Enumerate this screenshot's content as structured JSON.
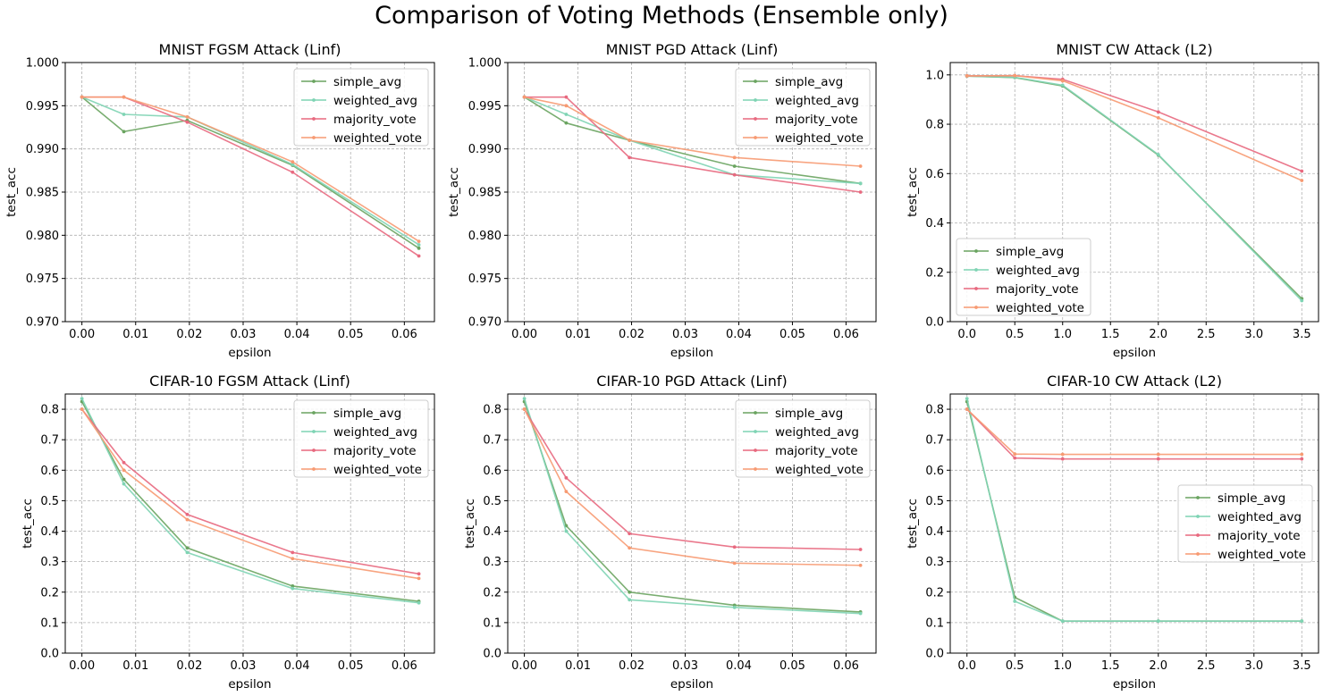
{
  "figure": {
    "suptitle": "Comparison of Voting Methods (Ensemble only)"
  },
  "series_styles": [
    {
      "name": "simple_avg",
      "color": "#6aa460"
    },
    {
      "name": "weighted_avg",
      "color": "#7fd4b4"
    },
    {
      "name": "majority_vote",
      "color": "#e8697f"
    },
    {
      "name": "weighted_vote",
      "color": "#f79a72"
    }
  ],
  "chart_data": [
    {
      "type": "line",
      "title": "MNIST FGSM Attack (Linf)",
      "xlabel": "epsilon",
      "ylabel": "test_acc",
      "xlim": [
        -0.0031,
        0.0656
      ],
      "ylim": [
        0.97,
        1.0
      ],
      "xticks": [
        0.0,
        0.01,
        0.02,
        0.03,
        0.04,
        0.05,
        0.06
      ],
      "xtick_labels": [
        "0.00",
        "0.01",
        "0.02",
        "0.03",
        "0.04",
        "0.05",
        "0.06"
      ],
      "yticks": [
        0.97,
        0.975,
        0.98,
        0.985,
        0.99,
        0.995,
        1.0
      ],
      "ytick_labels": [
        "0.970",
        "0.975",
        "0.980",
        "0.985",
        "0.990",
        "0.995",
        "1.000"
      ],
      "grid": true,
      "legend": "top-right",
      "x": [
        0.0,
        0.0078,
        0.0196,
        0.0392,
        0.0627
      ],
      "series": [
        {
          "name": "simple_avg",
          "values": [
            0.996,
            0.992,
            0.9933,
            0.9881,
            0.9785
          ]
        },
        {
          "name": "weighted_avg",
          "values": [
            0.996,
            0.994,
            0.9937,
            0.9882,
            0.9789
          ]
        },
        {
          "name": "majority_vote",
          "values": [
            0.996,
            0.996,
            0.9931,
            0.9873,
            0.9776
          ]
        },
        {
          "name": "weighted_vote",
          "values": [
            0.996,
            0.996,
            0.9937,
            0.9885,
            0.9793
          ]
        }
      ]
    },
    {
      "type": "line",
      "title": "MNIST PGD Attack (Linf)",
      "xlabel": "epsilon",
      "ylabel": "test_acc",
      "xlim": [
        -0.0031,
        0.0656
      ],
      "ylim": [
        0.97,
        1.0
      ],
      "xticks": [
        0.0,
        0.01,
        0.02,
        0.03,
        0.04,
        0.05,
        0.06
      ],
      "xtick_labels": [
        "0.00",
        "0.01",
        "0.02",
        "0.03",
        "0.04",
        "0.05",
        "0.06"
      ],
      "yticks": [
        0.97,
        0.975,
        0.98,
        0.985,
        0.99,
        0.995,
        1.0
      ],
      "ytick_labels": [
        "0.970",
        "0.975",
        "0.980",
        "0.985",
        "0.990",
        "0.995",
        "1.000"
      ],
      "grid": true,
      "legend": "top-right",
      "x": [
        0.0,
        0.0078,
        0.0196,
        0.0392,
        0.0627
      ],
      "series": [
        {
          "name": "simple_avg",
          "values": [
            0.996,
            0.993,
            0.991,
            0.988,
            0.986
          ]
        },
        {
          "name": "weighted_avg",
          "values": [
            0.996,
            0.994,
            0.991,
            0.987,
            0.986
          ]
        },
        {
          "name": "majority_vote",
          "values": [
            0.996,
            0.996,
            0.989,
            0.987,
            0.985
          ]
        },
        {
          "name": "weighted_vote",
          "values": [
            0.996,
            0.995,
            0.991,
            0.989,
            0.988
          ]
        }
      ]
    },
    {
      "type": "line",
      "title": "MNIST CW Attack (L2)",
      "xlabel": "epsilon",
      "ylabel": "test_acc",
      "xlim": [
        -0.175,
        3.675
      ],
      "ylim": [
        0.0,
        1.05
      ],
      "xticks": [
        0.0,
        0.5,
        1.0,
        1.5,
        2.0,
        2.5,
        3.0,
        3.5
      ],
      "xtick_labels": [
        "0.0",
        "0.5",
        "1.0",
        "1.5",
        "2.0",
        "2.5",
        "3.0",
        "3.5"
      ],
      "yticks": [
        0.0,
        0.2,
        0.4,
        0.6,
        0.8,
        1.0
      ],
      "ytick_labels": [
        "0.0",
        "0.2",
        "0.4",
        "0.6",
        "0.8",
        "1.0"
      ],
      "grid": true,
      "legend": "lower-left",
      "x": [
        0.0,
        0.5,
        1.0,
        2.0,
        3.5
      ],
      "series": [
        {
          "name": "simple_avg",
          "values": [
            0.995,
            0.989,
            0.955,
            0.675,
            0.093
          ]
        },
        {
          "name": "weighted_avg",
          "values": [
            0.995,
            0.99,
            0.958,
            0.677,
            0.085
          ]
        },
        {
          "name": "majority_vote",
          "values": [
            0.996,
            0.997,
            0.982,
            0.85,
            0.61
          ]
        },
        {
          "name": "weighted_vote",
          "values": [
            0.996,
            0.997,
            0.976,
            0.826,
            0.572
          ]
        }
      ]
    },
    {
      "type": "line",
      "title": "CIFAR-10 FGSM Attack (Linf)",
      "xlabel": "epsilon",
      "ylabel": "test_acc",
      "xlim": [
        -0.0031,
        0.0656
      ],
      "ylim": [
        0.0,
        0.85
      ],
      "xticks": [
        0.0,
        0.01,
        0.02,
        0.03,
        0.04,
        0.05,
        0.06
      ],
      "xtick_labels": [
        "0.00",
        "0.01",
        "0.02",
        "0.03",
        "0.04",
        "0.05",
        "0.06"
      ],
      "yticks": [
        0.0,
        0.1,
        0.2,
        0.3,
        0.4,
        0.5,
        0.6,
        0.7,
        0.8
      ],
      "ytick_labels": [
        "0.0",
        "0.1",
        "0.2",
        "0.3",
        "0.4",
        "0.5",
        "0.6",
        "0.7",
        "0.8"
      ],
      "grid": true,
      "legend": "top-right",
      "x": [
        0.0,
        0.0078,
        0.0196,
        0.0392,
        0.0627
      ],
      "series": [
        {
          "name": "simple_avg",
          "values": [
            0.825,
            0.57,
            0.345,
            0.22,
            0.17
          ]
        },
        {
          "name": "weighted_avg",
          "values": [
            0.835,
            0.555,
            0.33,
            0.212,
            0.165
          ]
        },
        {
          "name": "majority_vote",
          "values": [
            0.8,
            0.625,
            0.455,
            0.33,
            0.26
          ]
        },
        {
          "name": "weighted_vote",
          "values": [
            0.8,
            0.6,
            0.438,
            0.31,
            0.245
          ]
        }
      ]
    },
    {
      "type": "line",
      "title": "CIFAR-10 PGD Attack (Linf)",
      "xlabel": "epsilon",
      "ylabel": "test_acc",
      "xlim": [
        -0.0031,
        0.0656
      ],
      "ylim": [
        0.0,
        0.85
      ],
      "xticks": [
        0.0,
        0.01,
        0.02,
        0.03,
        0.04,
        0.05,
        0.06
      ],
      "xtick_labels": [
        "0.00",
        "0.01",
        "0.02",
        "0.03",
        "0.04",
        "0.05",
        "0.06"
      ],
      "yticks": [
        0.0,
        0.1,
        0.2,
        0.3,
        0.4,
        0.5,
        0.6,
        0.7,
        0.8
      ],
      "ytick_labels": [
        "0.0",
        "0.1",
        "0.2",
        "0.3",
        "0.4",
        "0.5",
        "0.6",
        "0.7",
        "0.8"
      ],
      "grid": true,
      "legend": "top-right",
      "x": [
        0.0,
        0.0078,
        0.0196,
        0.0392,
        0.0627
      ],
      "series": [
        {
          "name": "simple_avg",
          "values": [
            0.825,
            0.418,
            0.2,
            0.157,
            0.135
          ]
        },
        {
          "name": "weighted_avg",
          "values": [
            0.835,
            0.4,
            0.175,
            0.15,
            0.13
          ]
        },
        {
          "name": "majority_vote",
          "values": [
            0.8,
            0.575,
            0.392,
            0.348,
            0.34
          ]
        },
        {
          "name": "weighted_vote",
          "values": [
            0.8,
            0.53,
            0.345,
            0.295,
            0.288
          ]
        }
      ]
    },
    {
      "type": "line",
      "title": "CIFAR-10 CW Attack (L2)",
      "xlabel": "epsilon",
      "ylabel": "test_acc",
      "xlim": [
        -0.175,
        3.675
      ],
      "ylim": [
        0.0,
        0.85
      ],
      "xticks": [
        0.0,
        0.5,
        1.0,
        1.5,
        2.0,
        2.5,
        3.0,
        3.5
      ],
      "xtick_labels": [
        "0.0",
        "0.5",
        "1.0",
        "1.5",
        "2.0",
        "2.5",
        "3.0",
        "3.5"
      ],
      "yticks": [
        0.0,
        0.1,
        0.2,
        0.3,
        0.4,
        0.5,
        0.6,
        0.7,
        0.8
      ],
      "ytick_labels": [
        "0.0",
        "0.1",
        "0.2",
        "0.3",
        "0.4",
        "0.5",
        "0.6",
        "0.7",
        "0.8"
      ],
      "grid": true,
      "legend": "center-right",
      "x": [
        0.0,
        0.5,
        1.0,
        2.0,
        3.5
      ],
      "series": [
        {
          "name": "simple_avg",
          "values": [
            0.825,
            0.183,
            0.105,
            0.105,
            0.105
          ]
        },
        {
          "name": "weighted_avg",
          "values": [
            0.835,
            0.17,
            0.105,
            0.105,
            0.105
          ]
        },
        {
          "name": "majority_vote",
          "values": [
            0.8,
            0.64,
            0.637,
            0.637,
            0.637
          ]
        },
        {
          "name": "weighted_vote",
          "values": [
            0.8,
            0.653,
            0.652,
            0.652,
            0.652
          ]
        }
      ]
    }
  ]
}
